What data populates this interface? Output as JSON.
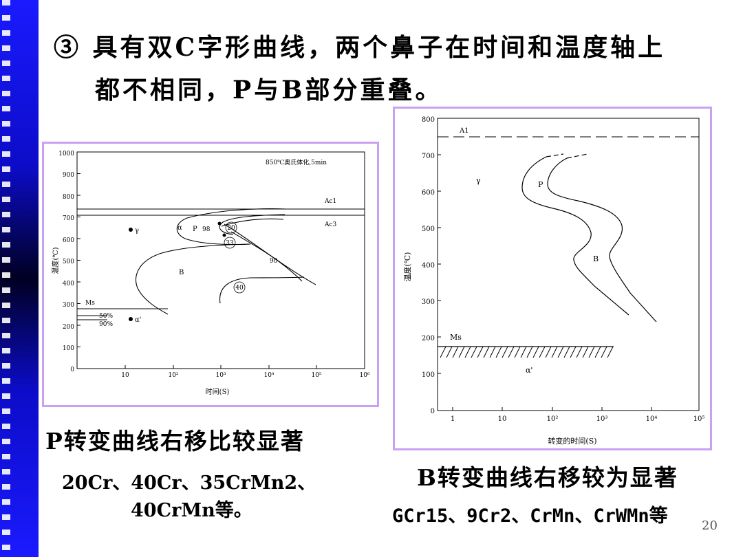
{
  "slide": {
    "title_line1": "③ 具有双C字形曲线，两个鼻子在时间和温度轴上",
    "title_line2": "都不相同，P与B部分重叠。",
    "page_number": "20",
    "colors": {
      "sidebar": "#1a1aff",
      "panel_border": "#c9a0f2"
    }
  },
  "left": {
    "caption": "P转变曲线右移比较显著",
    "steels_line1": "20Cr、40Cr、35CrMn2、",
    "steels_line2": "40CrMn等。",
    "diagram": {
      "note": "850℃奥氏体化,5min",
      "ylabel": "温度(℃)",
      "xlabel": "时间(S)",
      "y_ticks": [
        "1000",
        "900",
        "800",
        "700",
        "600",
        "500",
        "400",
        "300",
        "200",
        "100",
        "0"
      ],
      "x_ticks": [
        "10",
        "10²",
        "10³",
        "10⁴",
        "10⁵",
        "10⁶"
      ],
      "ac1": "Ac1",
      "ac3": "Ac3",
      "ms": "Ms",
      "pct50": "50%",
      "pct90": "90%",
      "alpha": "α",
      "gamma": "γ",
      "p_label": "P",
      "b_label": "B",
      "alpha_prime": "α'",
      "hv98": "98",
      "hv90": "90",
      "hv20": "20",
      "hv33": "33",
      "hv40": "40"
    }
  },
  "right": {
    "caption": "B转变曲线右移较为显著",
    "steels": "GCr15、9Cr2、CrMn、CrWMn等",
    "diagram": {
      "ylabel": "温度(℃)",
      "xlabel": "转变的时间(S)",
      "y_ticks": [
        "800",
        "700",
        "600",
        "500",
        "400",
        "300",
        "200",
        "100",
        "0"
      ],
      "x_ticks": [
        "1",
        "10",
        "10²",
        "10³",
        "10⁴",
        "10⁵"
      ],
      "a1": "A1",
      "gamma": "γ",
      "p_label": "P",
      "b_label": "B",
      "ms": "Ms",
      "alpha_prime": "α'"
    }
  }
}
